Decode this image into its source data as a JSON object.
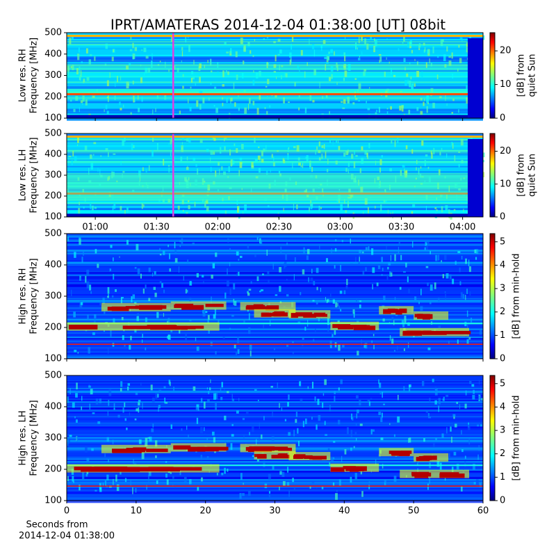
{
  "title": "IPRT/AMATERAS 2014-12-04 01:38:00 [UT]   08bit",
  "chart_data": [
    {
      "type": "spectrogram",
      "ylabel": [
        "Low res. RH",
        "Frequency [MHz]"
      ],
      "xlim": [
        46,
        250
      ],
      "xticks": [
        {
          "value": 60,
          "label": "01:00"
        },
        {
          "value": 90,
          "label": "01:30"
        },
        {
          "value": 120,
          "label": "02:00"
        },
        {
          "value": 150,
          "label": "02:30"
        },
        {
          "value": 180,
          "label": "03:00"
        },
        {
          "value": 210,
          "label": "03:30"
        },
        {
          "value": 240,
          "label": "04:00"
        }
      ],
      "show_xtick_labels": false,
      "ylim": [
        100,
        500
      ],
      "yticks": [
        100,
        200,
        300,
        400,
        500
      ],
      "colorbar": {
        "label": [
          "[dB] from",
          "quiet Sun"
        ],
        "lim": [
          0,
          25.4
        ],
        "ticks": [
          0,
          10,
          20
        ]
      }
    },
    {
      "type": "spectrogram",
      "ylabel": [
        "Low res. LH",
        "Frequency [MHz]"
      ],
      "xlim": [
        46,
        250
      ],
      "xticks": [
        {
          "value": 60,
          "label": "01:00"
        },
        {
          "value": 90,
          "label": "01:30"
        },
        {
          "value": 120,
          "label": "02:00"
        },
        {
          "value": 150,
          "label": "02:30"
        },
        {
          "value": 180,
          "label": "03:00"
        },
        {
          "value": 210,
          "label": "03:30"
        },
        {
          "value": 240,
          "label": "04:00"
        }
      ],
      "show_xtick_labels": true,
      "ylim": [
        100,
        500
      ],
      "yticks": [
        100,
        200,
        300,
        400,
        500
      ],
      "colorbar": {
        "label": [
          "[dB] from",
          "quiet Sun"
        ],
        "lim": [
          0,
          25.4
        ],
        "ticks": [
          0,
          10,
          20
        ]
      }
    },
    {
      "type": "spectrogram",
      "ylabel": [
        "High res. RH",
        "Frequency [MHz]"
      ],
      "xlim": [
        0,
        60
      ],
      "xticks": [
        0,
        10,
        20,
        30,
        40,
        50,
        60
      ],
      "show_xtick_labels": false,
      "ylim": [
        100,
        500
      ],
      "yticks": [
        100,
        200,
        300,
        400,
        500
      ],
      "colorbar": {
        "label": [
          "[dB] from min-hold"
        ],
        "lim": [
          0,
          5.35
        ],
        "ticks": [
          0,
          1,
          2,
          3,
          4,
          5
        ]
      }
    },
    {
      "type": "spectrogram",
      "ylabel": [
        "High res. LH",
        "Frequency [MHz]"
      ],
      "xlim": [
        0,
        60
      ],
      "xticks": [
        0,
        10,
        20,
        30,
        40,
        50,
        60
      ],
      "show_xtick_labels": true,
      "xlabel": [
        "Seconds from",
        "2014-12-04 01:38:00"
      ],
      "ylim": [
        100,
        500
      ],
      "yticks": [
        100,
        200,
        300,
        400,
        500
      ],
      "colorbar": {
        "label": [
          "[dB] from min-hold"
        ],
        "lim": [
          0,
          5.35
        ],
        "ticks": [
          0,
          1,
          2,
          3,
          4,
          5
        ]
      }
    }
  ]
}
